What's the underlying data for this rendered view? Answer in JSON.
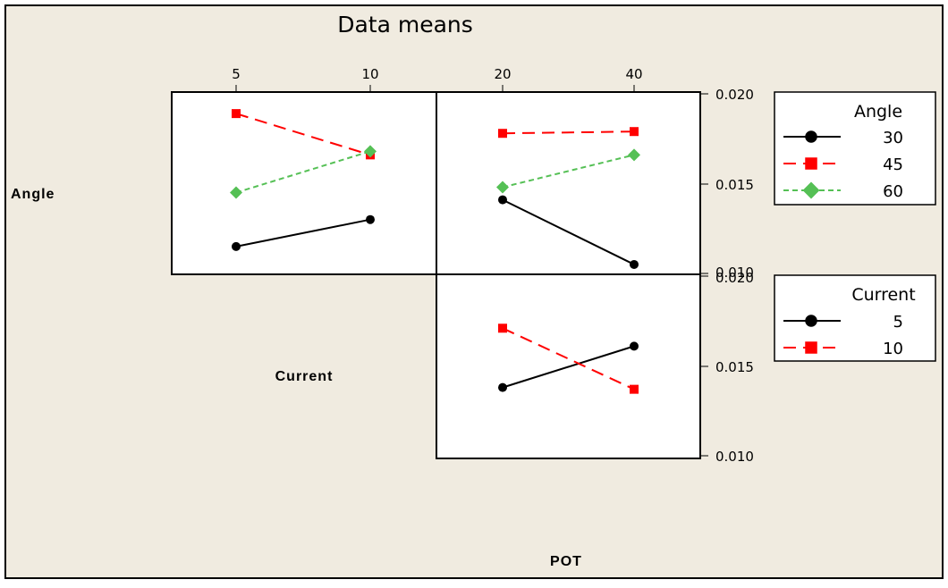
{
  "chart_data": {
    "type": "line",
    "title": "Data means",
    "factors": [
      "Angle",
      "Current",
      "POT"
    ],
    "y_ticks": [
      "0.010",
      "0.015",
      "0.020"
    ],
    "ylim": [
      0.01,
      0.02
    ],
    "panels": [
      {
        "id": "current-by-angle",
        "x_factor": "Current",
        "trace_factor": "Angle",
        "x": [
          5,
          10
        ],
        "x_tick_labels": [
          "5",
          "10"
        ],
        "series": [
          {
            "name": "30",
            "values": [
              0.0115,
              0.013
            ]
          },
          {
            "name": "45",
            "values": [
              0.0189,
              0.0166
            ]
          },
          {
            "name": "60",
            "values": [
              0.0145,
              0.0168
            ]
          }
        ]
      },
      {
        "id": "pot-by-angle",
        "x_factor": "POT",
        "trace_factor": "Angle",
        "x": [
          20,
          40
        ],
        "x_tick_labels": [
          "20",
          "40"
        ],
        "series": [
          {
            "name": "30",
            "values": [
              0.0141,
              0.0105
            ]
          },
          {
            "name": "45",
            "values": [
              0.0178,
              0.0179
            ]
          },
          {
            "name": "60",
            "values": [
              0.0148,
              0.0166
            ]
          }
        ]
      },
      {
        "id": "pot-by-current",
        "x_factor": "POT",
        "trace_factor": "Current",
        "x": [
          20,
          40
        ],
        "x_tick_labels": [
          "20",
          "40"
        ],
        "series": [
          {
            "name": "5",
            "values": [
              0.0138,
              0.0161
            ]
          },
          {
            "name": "10",
            "values": [
              0.0171,
              0.0137
            ]
          }
        ]
      }
    ],
    "legends": [
      {
        "title": "Angle",
        "entries": [
          "30",
          "45",
          "60"
        ]
      },
      {
        "title": "Current",
        "entries": [
          "5",
          "10"
        ]
      }
    ],
    "styles": {
      "30": {
        "color": "#000000",
        "marker": "circle",
        "dash": "solid"
      },
      "45": {
        "color": "#ff0000",
        "marker": "square",
        "dash": "long-dash"
      },
      "60": {
        "color": "#55c055",
        "marker": "diamond",
        "dash": "short-dash"
      },
      "5": {
        "color": "#000000",
        "marker": "circle",
        "dash": "solid"
      },
      "10": {
        "color": "#ff0000",
        "marker": "square",
        "dash": "long-dash"
      }
    },
    "background_color": "#f0ebe0",
    "grid": false
  }
}
